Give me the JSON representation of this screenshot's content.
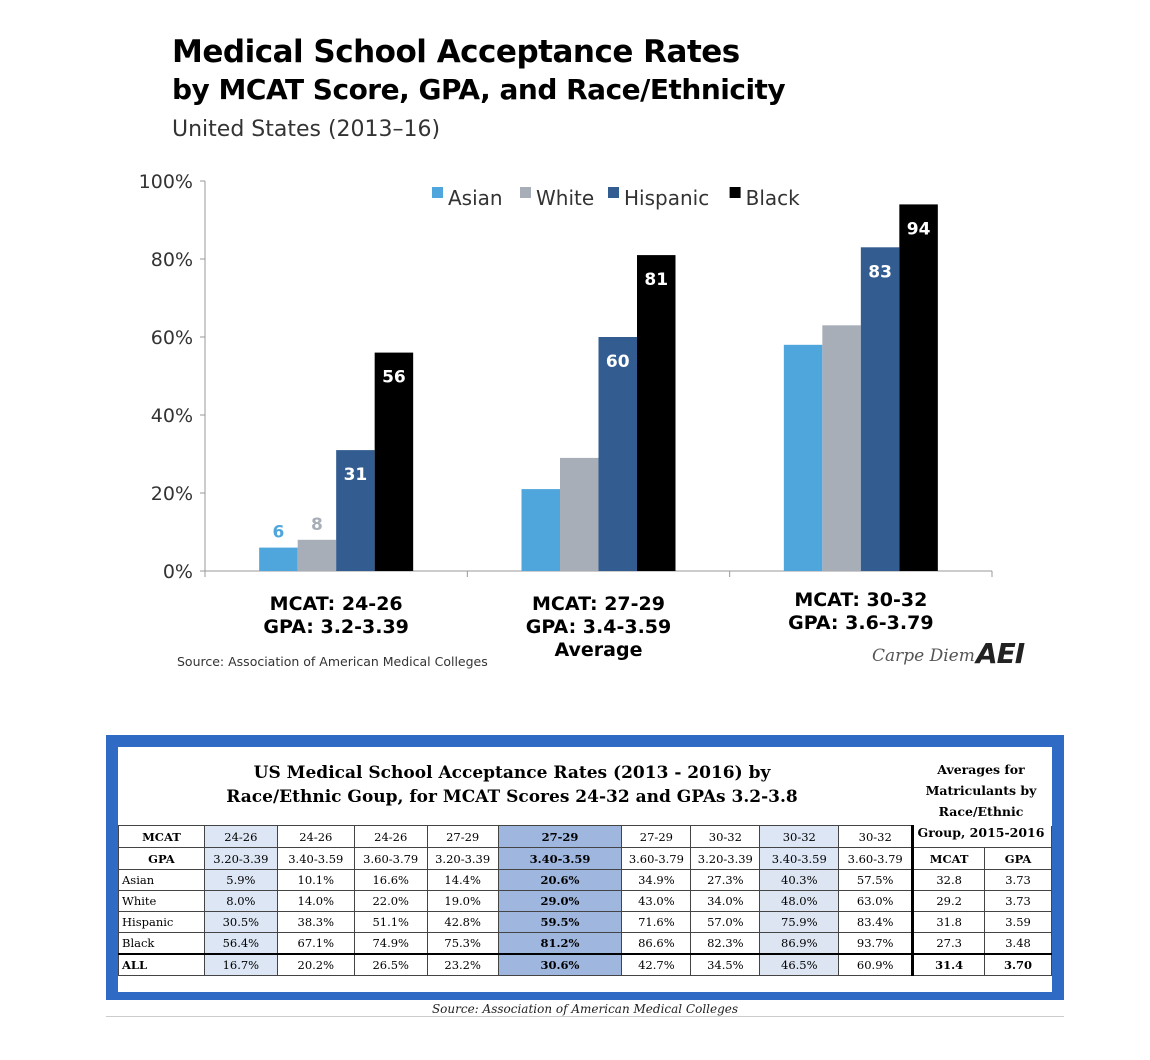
{
  "title_line1": "Medical School Acceptance Rates",
  "title_line2": "by MCAT Score, GPA, and Race/Ethnicity",
  "subtitle": "United States (2013–16)",
  "source": "Source: Association of American Medical Colleges",
  "brand": "Carpe Diem",
  "brand_logo": "AEI",
  "chart_data": {
    "type": "bar",
    "categories": [
      [
        "MCAT: 24-26",
        "GPA: 3.2-3.39"
      ],
      [
        "MCAT: 27-29",
        "GPA: 3.4-3.59",
        "Average"
      ],
      [
        "MCAT: 30-32",
        "GPA: 3.6-3.79"
      ]
    ],
    "series": [
      {
        "name": "Asian",
        "color": "#4fa6dc",
        "label_color": "#4fa6dc",
        "values": [
          6,
          21,
          58
        ]
      },
      {
        "name": "White",
        "color": "#a7aeb8",
        "label_color": "#a7aeb8",
        "values": [
          8,
          29,
          63
        ]
      },
      {
        "name": "Hispanic",
        "color": "#335c90",
        "label_color": "#ffffff",
        "values": [
          31,
          60,
          83
        ]
      },
      {
        "name": "Black",
        "color": "#000000",
        "label_color": "#ffffff",
        "values": [
          56,
          81,
          94
        ]
      }
    ],
    "yticks": [
      "0%",
      "20%",
      "40%",
      "60%",
      "80%",
      "100%"
    ],
    "ylim": [
      0,
      100
    ],
    "legend_position": "top"
  },
  "table": {
    "title_line1": "US Medical School Acceptance Rates (2013 - 2016) by",
    "title_line2": "Race/Ethnic Goup, for MCAT Scores 24-32 and GPAs 3.2-3.8",
    "right_title": [
      "Averages for",
      "Matriculants by",
      "Race/Ethnic",
      "Group, 2015-2016"
    ],
    "mcat_label": "MCAT",
    "gpa_label": "GPA",
    "mcat": [
      "24-26",
      "24-26",
      "24-26",
      "27-29",
      "27-29",
      "27-29",
      "30-32",
      "30-32",
      "30-32"
    ],
    "gpa": [
      "3.20-3.39",
      "3.40-3.59",
      "3.60-3.79",
      "3.20-3.39",
      "3.40-3.59",
      "3.60-3.79",
      "3.20-3.39",
      "3.40-3.59",
      "3.60-3.79"
    ],
    "avg_headers": [
      "MCAT",
      "GPA"
    ],
    "rows": [
      {
        "label": "Asian",
        "values": [
          "5.9%",
          "10.1%",
          "16.6%",
          "14.4%",
          "20.6%",
          "34.9%",
          "27.3%",
          "40.3%",
          "57.5%"
        ],
        "avg": [
          "32.8",
          "3.73"
        ]
      },
      {
        "label": "White",
        "values": [
          "8.0%",
          "14.0%",
          "22.0%",
          "19.0%",
          "29.0%",
          "43.0%",
          "34.0%",
          "48.0%",
          "63.0%"
        ],
        "avg": [
          "29.2",
          "3.73"
        ]
      },
      {
        "label": "Hispanic",
        "values": [
          "30.5%",
          "38.3%",
          "51.1%",
          "42.8%",
          "59.5%",
          "71.6%",
          "57.0%",
          "75.9%",
          "83.4%"
        ],
        "avg": [
          "31.8",
          "3.59"
        ]
      },
      {
        "label": "Black",
        "values": [
          "56.4%",
          "67.1%",
          "74.9%",
          "75.3%",
          "81.2%",
          "86.6%",
          "82.3%",
          "86.9%",
          "93.7%"
        ],
        "avg": [
          "27.3",
          "3.48"
        ]
      },
      {
        "label": "ALL",
        "values": [
          "16.7%",
          "20.2%",
          "26.5%",
          "23.2%",
          "30.6%",
          "42.7%",
          "34.5%",
          "46.5%",
          "60.9%"
        ],
        "avg": [
          "31.4",
          "3.70"
        ]
      }
    ],
    "source": "Source: Association of American Medical Colleges"
  }
}
